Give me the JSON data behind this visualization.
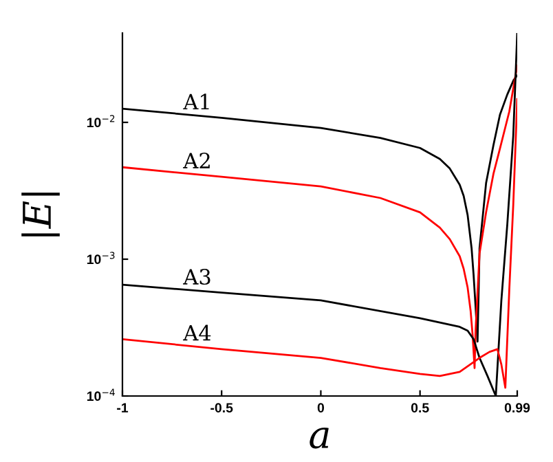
{
  "chart_data": {
    "type": "line",
    "xlabel": "a",
    "ylabel": "|E|",
    "log": "y",
    "grid": false,
    "legend": false,
    "marker": "none",
    "line_style": "solid",
    "xlim": [
      -1,
      0.99
    ],
    "ylim": [
      0.0001,
      0.045
    ],
    "xticks": [
      -1,
      -0.5,
      0,
      0.5,
      0.99
    ],
    "yticks": [
      {
        "value": 0.0001,
        "label": "10$^{−4}$"
      },
      {
        "value": 0.001,
        "label": "10$^{−3}$"
      },
      {
        "value": 0.01,
        "label": "10$^{−2}$"
      }
    ],
    "series": [
      {
        "name": "A1",
        "color": "#000000",
        "x": [
          -1,
          -0.5,
          0,
          0.3,
          0.5,
          0.6,
          0.65,
          0.7,
          0.72,
          0.74,
          0.76,
          0.77,
          0.78,
          0.79,
          0.8,
          0.833,
          0.87,
          0.903,
          0.94,
          0.972,
          0.99
        ],
        "values": [
          0.0126,
          0.0108,
          0.0091,
          0.0077,
          0.0065,
          0.0054,
          0.0046,
          0.0035,
          0.0029,
          0.0021,
          0.0012,
          0.00077,
          0.00045,
          0.00025,
          0.0012,
          0.0036,
          0.0068,
          0.0114,
          0.016,
          0.0204,
          0.022
        ]
      },
      {
        "name": "A2",
        "color": "#ff0000",
        "x": [
          -1,
          -0.5,
          0,
          0.3,
          0.5,
          0.6,
          0.65,
          0.7,
          0.72,
          0.74,
          0.755,
          0.765,
          0.775,
          0.78,
          0.8,
          0.833,
          0.87,
          0.9,
          0.95,
          0.99
        ],
        "values": [
          0.0047,
          0.004,
          0.0034,
          0.0028,
          0.0022,
          0.0017,
          0.0014,
          0.00105,
          0.00085,
          0.00062,
          0.00042,
          0.00028,
          0.00016,
          0.0003,
          0.0011,
          0.0022,
          0.0042,
          0.0062,
          0.012,
          0.026
        ]
      },
      {
        "name": "A3",
        "color": "#000000",
        "x": [
          -1,
          -0.5,
          0,
          0.5,
          0.7,
          0.74,
          0.77,
          0.8,
          0.84,
          0.882,
          0.91,
          0.94,
          0.97,
          0.99
        ],
        "values": [
          0.00065,
          0.00057,
          0.0005,
          0.00037,
          0.00032,
          0.0003,
          0.00026,
          0.00019,
          0.00014,
          0.0001,
          0.0005,
          0.0018,
          0.008,
          0.045
        ]
      },
      {
        "name": "A4",
        "color": "#ff0000",
        "x": [
          -1,
          -0.5,
          0,
          0.3,
          0.5,
          0.6,
          0.7,
          0.8,
          0.85,
          0.89,
          0.91,
          0.93,
          0.95,
          0.97,
          0.99
        ],
        "values": [
          0.00026,
          0.00022,
          0.00019,
          0.00016,
          0.000145,
          0.00014,
          0.00015,
          0.00019,
          0.00021,
          0.00022,
          0.00017,
          0.000115,
          0.0006,
          0.0025,
          0.0148
        ]
      }
    ]
  }
}
